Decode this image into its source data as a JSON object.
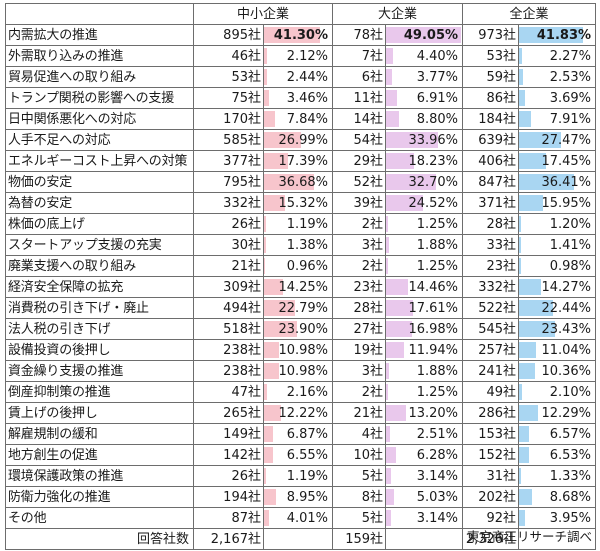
{
  "headers": {
    "blank": "",
    "sme": "中小企業",
    "large": "大企業",
    "all": "全企業"
  },
  "colors": {
    "sme_bar": "#f7c5cc",
    "large_bar": "#e9c8ec",
    "all_bar": "#a9d6f2"
  },
  "chart_data": {
    "type": "table",
    "columns": [
      "中小企業",
      "大企業",
      "全企業"
    ],
    "rows": [
      {
        "item": "内需拡大の推進",
        "sme_count": "895社",
        "sme_pct": "41.30%",
        "sme_v": 41.3,
        "large_count": "78社",
        "large_pct": "49.05%",
        "large_v": 49.05,
        "all_count": "973社",
        "all_pct": "41.83%",
        "all_v": 41.83,
        "top": true
      },
      {
        "item": "外需取り込みの推進",
        "sme_count": "46社",
        "sme_pct": "2.12%",
        "sme_v": 2.12,
        "large_count": "7社",
        "large_pct": "4.40%",
        "large_v": 4.4,
        "all_count": "53社",
        "all_pct": "2.27%",
        "all_v": 2.27
      },
      {
        "item": "貿易促進への取り組み",
        "sme_count": "53社",
        "sme_pct": "2.44%",
        "sme_v": 2.44,
        "large_count": "6社",
        "large_pct": "3.77%",
        "large_v": 3.77,
        "all_count": "59社",
        "all_pct": "2.53%",
        "all_v": 2.53
      },
      {
        "item": "トランプ関税の影響への支援",
        "sme_count": "75社",
        "sme_pct": "3.46%",
        "sme_v": 3.46,
        "large_count": "11社",
        "large_pct": "6.91%",
        "large_v": 6.91,
        "all_count": "86社",
        "all_pct": "3.69%",
        "all_v": 3.69
      },
      {
        "item": "日中関係悪化への対応",
        "sme_count": "170社",
        "sme_pct": "7.84%",
        "sme_v": 7.84,
        "large_count": "14社",
        "large_pct": "8.80%",
        "large_v": 8.8,
        "all_count": "184社",
        "all_pct": "7.91%",
        "all_v": 7.91
      },
      {
        "item": "人手不足への対応",
        "sme_count": "585社",
        "sme_pct": "26.99%",
        "sme_v": 26.99,
        "large_count": "54社",
        "large_pct": "33.96%",
        "large_v": 33.96,
        "all_count": "639社",
        "all_pct": "27.47%",
        "all_v": 27.47
      },
      {
        "item": "エネルギーコスト上昇への対策",
        "sme_count": "377社",
        "sme_pct": "17.39%",
        "sme_v": 17.39,
        "large_count": "29社",
        "large_pct": "18.23%",
        "large_v": 18.23,
        "all_count": "406社",
        "all_pct": "17.45%",
        "all_v": 17.45
      },
      {
        "item": "物価の安定",
        "sme_count": "795社",
        "sme_pct": "36.68%",
        "sme_v": 36.68,
        "large_count": "52社",
        "large_pct": "32.70%",
        "large_v": 32.7,
        "all_count": "847社",
        "all_pct": "36.41%",
        "all_v": 36.41
      },
      {
        "item": "為替の安定",
        "sme_count": "332社",
        "sme_pct": "15.32%",
        "sme_v": 15.32,
        "large_count": "39社",
        "large_pct": "24.52%",
        "large_v": 24.52,
        "all_count": "371社",
        "all_pct": "15.95%",
        "all_v": 15.95
      },
      {
        "item": "株価の底上げ",
        "sme_count": "26社",
        "sme_pct": "1.19%",
        "sme_v": 1.19,
        "large_count": "2社",
        "large_pct": "1.25%",
        "large_v": 1.25,
        "all_count": "28社",
        "all_pct": "1.20%",
        "all_v": 1.2
      },
      {
        "item": "スタートアップ支援の充実",
        "sme_count": "30社",
        "sme_pct": "1.38%",
        "sme_v": 1.38,
        "large_count": "3社",
        "large_pct": "1.88%",
        "large_v": 1.88,
        "all_count": "33社",
        "all_pct": "1.41%",
        "all_v": 1.41
      },
      {
        "item": "廃業支援への取り組み",
        "sme_count": "21社",
        "sme_pct": "0.96%",
        "sme_v": 0.96,
        "large_count": "2社",
        "large_pct": "1.25%",
        "large_v": 1.25,
        "all_count": "23社",
        "all_pct": "0.98%",
        "all_v": 0.98
      },
      {
        "item": "経済安全保障の拡充",
        "sme_count": "309社",
        "sme_pct": "14.25%",
        "sme_v": 14.25,
        "large_count": "23社",
        "large_pct": "14.46%",
        "large_v": 14.46,
        "all_count": "332社",
        "all_pct": "14.27%",
        "all_v": 14.27
      },
      {
        "item": "消費税の引き下げ・廃止",
        "sme_count": "494社",
        "sme_pct": "22.79%",
        "sme_v": 22.79,
        "large_count": "28社",
        "large_pct": "17.61%",
        "large_v": 17.61,
        "all_count": "522社",
        "all_pct": "22.44%",
        "all_v": 22.44
      },
      {
        "item": "法人税の引き下げ",
        "sme_count": "518社",
        "sme_pct": "23.90%",
        "sme_v": 23.9,
        "large_count": "27社",
        "large_pct": "16.98%",
        "large_v": 16.98,
        "all_count": "545社",
        "all_pct": "23.43%",
        "all_v": 23.43
      },
      {
        "item": "設備投資の後押し",
        "sme_count": "238社",
        "sme_pct": "10.98%",
        "sme_v": 10.98,
        "large_count": "19社",
        "large_pct": "11.94%",
        "large_v": 11.94,
        "all_count": "257社",
        "all_pct": "11.04%",
        "all_v": 11.04
      },
      {
        "item": "資金繰り支援の推進",
        "sme_count": "238社",
        "sme_pct": "10.98%",
        "sme_v": 10.98,
        "large_count": "3社",
        "large_pct": "1.88%",
        "large_v": 1.88,
        "all_count": "241社",
        "all_pct": "10.36%",
        "all_v": 10.36
      },
      {
        "item": "倒産抑制策の推進",
        "sme_count": "47社",
        "sme_pct": "2.16%",
        "sme_v": 2.16,
        "large_count": "2社",
        "large_pct": "1.25%",
        "large_v": 1.25,
        "all_count": "49社",
        "all_pct": "2.10%",
        "all_v": 2.1
      },
      {
        "item": "賃上げの後押し",
        "sme_count": "265社",
        "sme_pct": "12.22%",
        "sme_v": 12.22,
        "large_count": "21社",
        "large_pct": "13.20%",
        "large_v": 13.2,
        "all_count": "286社",
        "all_pct": "12.29%",
        "all_v": 12.29
      },
      {
        "item": "解雇規制の緩和",
        "sme_count": "149社",
        "sme_pct": "6.87%",
        "sme_v": 6.87,
        "large_count": "4社",
        "large_pct": "2.51%",
        "large_v": 2.51,
        "all_count": "153社",
        "all_pct": "6.57%",
        "all_v": 6.57
      },
      {
        "item": "地方創生の促進",
        "sme_count": "142社",
        "sme_pct": "6.55%",
        "sme_v": 6.55,
        "large_count": "10社",
        "large_pct": "6.28%",
        "large_v": 6.28,
        "all_count": "152社",
        "all_pct": "6.53%",
        "all_v": 6.53
      },
      {
        "item": "環境保護政策の推進",
        "sme_count": "26社",
        "sme_pct": "1.19%",
        "sme_v": 1.19,
        "large_count": "5社",
        "large_pct": "3.14%",
        "large_v": 3.14,
        "all_count": "31社",
        "all_pct": "1.33%",
        "all_v": 1.33
      },
      {
        "item": "防衛力強化の推進",
        "sme_count": "194社",
        "sme_pct": "8.95%",
        "sme_v": 8.95,
        "large_count": "8社",
        "large_pct": "5.03%",
        "large_v": 5.03,
        "all_count": "202社",
        "all_pct": "8.68%",
        "all_v": 8.68
      },
      {
        "item": "その他",
        "sme_count": "87社",
        "sme_pct": "4.01%",
        "sme_v": 4.01,
        "large_count": "5社",
        "large_pct": "3.14%",
        "large_v": 3.14,
        "all_count": "92社",
        "all_pct": "3.95%",
        "all_v": 3.95
      }
    ],
    "footer": {
      "label": "回答社数",
      "sme": "2,167社",
      "large": "159社",
      "all": "2,326社"
    },
    "bar_max_percent": 50
  },
  "source": "東京商工リサーチ調べ"
}
